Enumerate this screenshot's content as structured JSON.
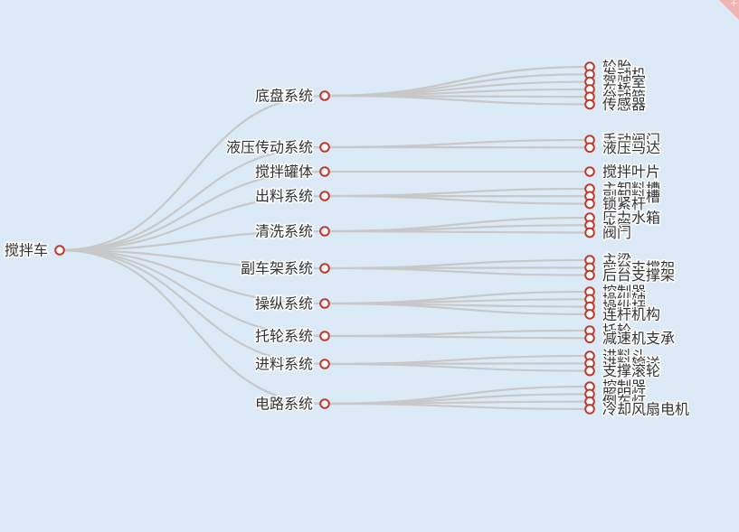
{
  "colors": {
    "background": "#dceaf8",
    "link": "#c8c8c8",
    "node_stroke": "#c0392b",
    "node_fill": "#ffffff"
  },
  "corner": {
    "symbol": "+"
  },
  "tree": {
    "name": "搅拌车",
    "children": [
      {
        "name": "底盘系统",
        "children": [
          "轮胎",
          "发动机",
          "驾驶室",
          "车桥",
          "分动箱",
          "传感器"
        ]
      },
      {
        "name": "液压传动系统",
        "children": [
          "手动阀门",
          "液压马达"
        ]
      },
      {
        "name": "搅拌罐体",
        "children": [
          "搅拌叶片"
        ]
      },
      {
        "name": "出料系统",
        "children": [
          "主卸料槽",
          "副卸料槽",
          "锁紧杆"
        ]
      },
      {
        "name": "清洗系统",
        "children": [
          "压力水箱",
          "水管",
          "阀门"
        ]
      },
      {
        "name": "副车架系统",
        "children": [
          "主梁",
          "前台支撑架",
          "后台支撑架"
        ]
      },
      {
        "name": "操纵系统",
        "children": [
          "控制器",
          "操纵轴",
          "操纵杆",
          "连杆机构"
        ]
      },
      {
        "name": "托轮系统",
        "children": [
          "托轮",
          "减速机支承"
        ]
      },
      {
        "name": "进料系统",
        "children": [
          "进料斗",
          "进料输送",
          "支撑滚轮"
        ]
      },
      {
        "name": "电路系统",
        "children": [
          "控制器",
          "照明灯",
          "倒车灯",
          "冷却风扇电机"
        ]
      }
    ]
  }
}
